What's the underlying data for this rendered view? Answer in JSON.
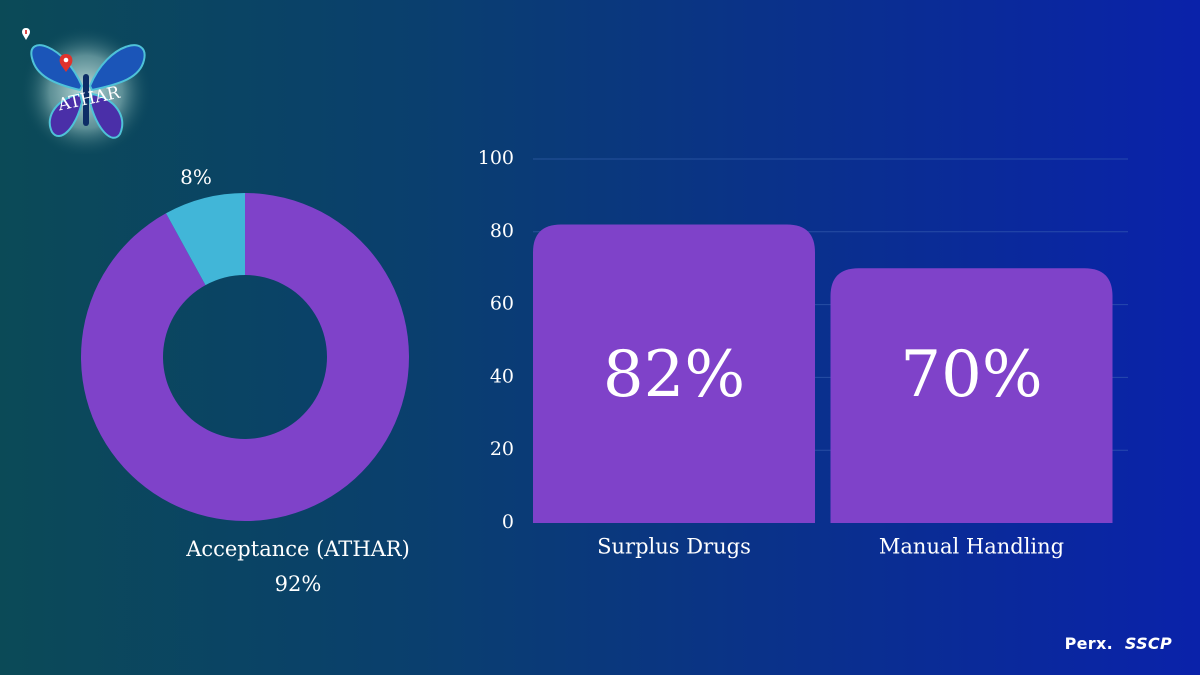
{
  "logo": {
    "text": "ATHAR"
  },
  "chart_data": [
    {
      "type": "pie",
      "variant": "donut",
      "slices": [
        {
          "label": "Acceptance (ATHAR)",
          "value": 92,
          "display": "92%",
          "color": "#7f42c9"
        },
        {
          "label": "",
          "value": 8,
          "display": "8%",
          "color": "#41b6d8"
        }
      ]
    },
    {
      "type": "bar",
      "categories": [
        "Surplus Drugs",
        "Manual Handling"
      ],
      "values": [
        82,
        70
      ],
      "data_labels": [
        "82%",
        "70%"
      ],
      "ylim": [
        0,
        100
      ],
      "yticks": [
        0,
        20,
        40,
        60,
        80,
        100
      ],
      "grid": true,
      "bar_color": "#7f42c9"
    }
  ],
  "footer": {
    "brand1": "Perx.",
    "brand2": "SSCP"
  }
}
